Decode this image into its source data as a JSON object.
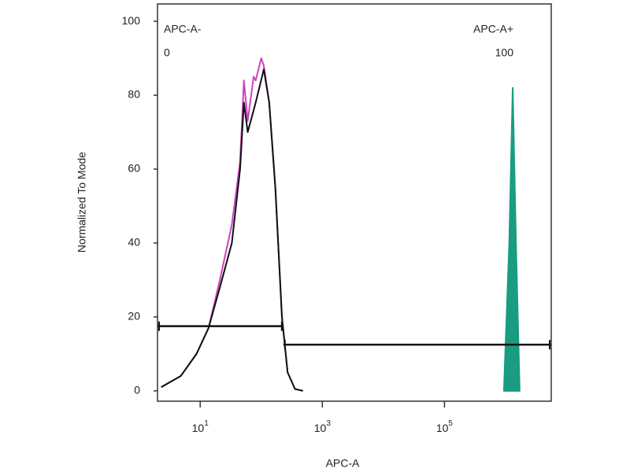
{
  "chart_data": {
    "type": "line",
    "x_label": "APC-A",
    "y_label": "Normalized To Mode",
    "xscale": "log",
    "xlim": [
      2,
      5600000
    ],
    "ylim": [
      -2.8,
      104.7
    ],
    "xticks": [
      {
        "value": 10,
        "label": "10",
        "exponent": "1"
      },
      {
        "value": 1000,
        "label": "10",
        "exponent": "3"
      },
      {
        "value": 100000,
        "label": "10",
        "exponent": "5"
      }
    ],
    "yticks": [
      0,
      20,
      40,
      60,
      80,
      100
    ],
    "series": [
      {
        "color": "#d040c0",
        "x": [
          2.3,
          4.8,
          8.7,
          13.7,
          21,
          33,
          45,
          52,
          60,
          75,
          81,
          100,
          110,
          135,
          170,
          218,
          270,
          357,
          480
        ],
        "values": [
          1,
          4,
          10,
          17,
          30,
          45,
          62,
          84,
          73,
          85,
          84,
          90,
          88,
          78,
          55,
          20,
          5,
          0.5,
          0
        ]
      },
      {
        "color": "#111111",
        "x": [
          2.3,
          4.8,
          8.7,
          13.7,
          21,
          33,
          45,
          52,
          60,
          81,
          110,
          135,
          170,
          218,
          270,
          357,
          480
        ],
        "values": [
          1,
          4,
          10,
          17,
          28,
          40,
          60,
          78,
          70,
          78,
          87,
          78,
          55,
          20,
          5,
          0.5,
          0
        ]
      },
      {
        "color": "#1a9c80",
        "fill": true,
        "x": [
          940000,
          1150000,
          1310000,
          1480000,
          1700000
        ],
        "values": [
          0,
          40,
          82,
          40,
          0
        ]
      }
    ],
    "gates": [
      {
        "label": "APC-A-",
        "percent": 0,
        "xrange": [
          2,
          230
        ],
        "y": 17.5
      },
      {
        "label": "APC-A+",
        "percent": 100,
        "xrange": [
          230,
          5600000
        ],
        "y": 12.5
      }
    ]
  }
}
